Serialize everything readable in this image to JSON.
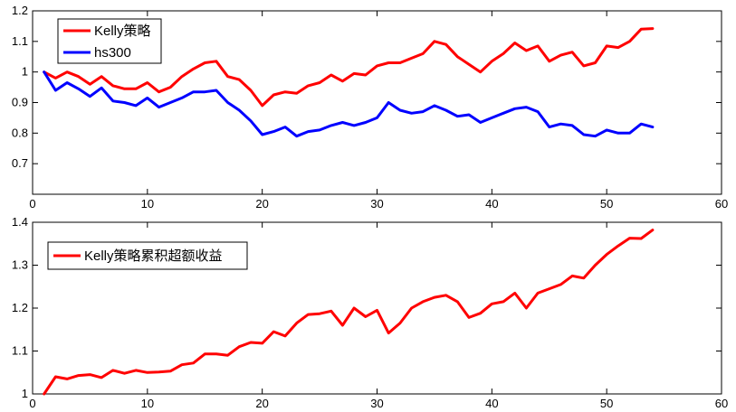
{
  "chart_data": [
    {
      "type": "line",
      "xlim": [
        0,
        60
      ],
      "ylim": [
        0.6,
        1.2
      ],
      "xticks": [
        "0",
        "10",
        "20",
        "30",
        "40",
        "50",
        "60"
      ],
      "yticks": [
        "0.7",
        "0.8",
        "0.9",
        "1",
        "1.1",
        "1.2"
      ],
      "grid": false,
      "legend": "top-left",
      "x": [
        1,
        2,
        3,
        4,
        5,
        6,
        7,
        8,
        9,
        10,
        11,
        12,
        13,
        14,
        15,
        16,
        17,
        18,
        19,
        20,
        21,
        22,
        23,
        24,
        25,
        26,
        27,
        28,
        29,
        30,
        31,
        32,
        33,
        34,
        35,
        36,
        37,
        38,
        39,
        40,
        41,
        42,
        43,
        44,
        45,
        46,
        47,
        48,
        49,
        50,
        51,
        52,
        53,
        54
      ],
      "series": [
        {
          "name": "Kelly策略",
          "color": "#ff0000",
          "values": [
            1.0,
            0.98,
            1.0,
            0.985,
            0.96,
            0.985,
            0.955,
            0.945,
            0.945,
            0.965,
            0.935,
            0.95,
            0.985,
            1.01,
            1.03,
            1.035,
            0.985,
            0.975,
            0.94,
            0.89,
            0.925,
            0.935,
            0.93,
            0.955,
            0.965,
            0.99,
            0.97,
            0.995,
            0.99,
            1.02,
            1.03,
            1.03,
            1.045,
            1.06,
            1.1,
            1.09,
            1.05,
            1.025,
            1.0,
            1.035,
            1.06,
            1.095,
            1.07,
            1.085,
            1.035,
            1.055,
            1.065,
            1.02,
            1.03,
            1.085,
            1.08,
            1.1,
            1.14,
            1.142
          ]
        },
        {
          "name": "hs300",
          "color": "#0000ff",
          "values": [
            1.0,
            0.94,
            0.965,
            0.945,
            0.92,
            0.948,
            0.905,
            0.9,
            0.89,
            0.915,
            0.885,
            0.9,
            0.915,
            0.935,
            0.935,
            0.94,
            0.9,
            0.875,
            0.84,
            0.795,
            0.805,
            0.82,
            0.79,
            0.805,
            0.81,
            0.825,
            0.835,
            0.825,
            0.835,
            0.85,
            0.9,
            0.875,
            0.865,
            0.87,
            0.89,
            0.875,
            0.855,
            0.86,
            0.835,
            0.85,
            0.865,
            0.88,
            0.885,
            0.87,
            0.82,
            0.83,
            0.825,
            0.795,
            0.79,
            0.81,
            0.8,
            0.8,
            0.83,
            0.82
          ]
        }
      ]
    },
    {
      "type": "line",
      "xlim": [
        0,
        60
      ],
      "ylim": [
        1.0,
        1.4
      ],
      "xticks": [
        "0",
        "10",
        "20",
        "30",
        "40",
        "50",
        "60"
      ],
      "yticks": [
        "1",
        "1.1",
        "1.2",
        "1.3",
        "1.4"
      ],
      "grid": false,
      "legend": "top-left",
      "x": [
        1,
        2,
        3,
        4,
        5,
        6,
        7,
        8,
        9,
        10,
        11,
        12,
        13,
        14,
        15,
        16,
        17,
        18,
        19,
        20,
        21,
        22,
        23,
        24,
        25,
        26,
        27,
        28,
        29,
        30,
        31,
        32,
        33,
        34,
        35,
        36,
        37,
        38,
        39,
        40,
        41,
        42,
        43,
        44,
        45,
        46,
        47,
        48,
        49,
        50,
        51,
        52,
        53,
        54
      ],
      "series": [
        {
          "name": "Kelly策略累积超额收益",
          "color": "#ff0000",
          "values": [
            1.0,
            1.04,
            1.035,
            1.043,
            1.045,
            1.038,
            1.055,
            1.048,
            1.055,
            1.05,
            1.051,
            1.053,
            1.068,
            1.072,
            1.093,
            1.093,
            1.09,
            1.11,
            1.12,
            1.118,
            1.145,
            1.135,
            1.165,
            1.185,
            1.187,
            1.193,
            1.16,
            1.2,
            1.18,
            1.195,
            1.142,
            1.165,
            1.2,
            1.215,
            1.225,
            1.23,
            1.215,
            1.178,
            1.188,
            1.21,
            1.215,
            1.235,
            1.2,
            1.235,
            1.245,
            1.255,
            1.275,
            1.27,
            1.3,
            1.325,
            1.345,
            1.363,
            1.362,
            1.382
          ]
        }
      ]
    }
  ]
}
